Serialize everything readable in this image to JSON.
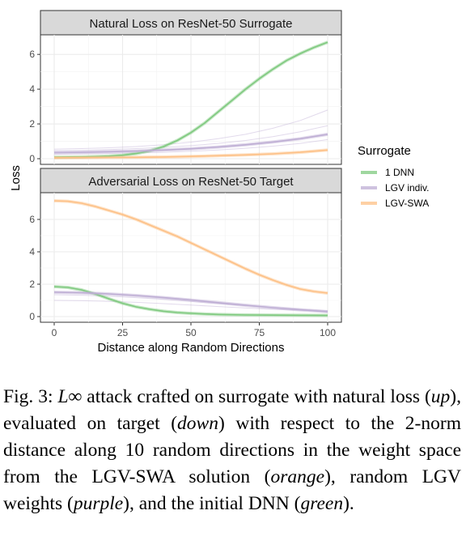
{
  "chart_data": [
    {
      "type": "line",
      "title": "Natural Loss on ResNet-50 Surrogate",
      "ylim": [
        0,
        6.8
      ],
      "yticks": [
        0,
        2,
        4,
        6
      ],
      "xlim": [
        0,
        100
      ],
      "series": [
        {
          "name": "1 DNN",
          "color": "#7fc97f",
          "x": [
            0,
            5,
            10,
            15,
            20,
            25,
            30,
            35,
            40,
            45,
            50,
            55,
            60,
            65,
            70,
            75,
            80,
            85,
            90,
            95,
            100
          ],
          "y": [
            0.08,
            0.09,
            0.1,
            0.12,
            0.15,
            0.2,
            0.3,
            0.45,
            0.7,
            1.05,
            1.5,
            2.05,
            2.7,
            3.35,
            4.0,
            4.6,
            5.15,
            5.65,
            6.05,
            6.4,
            6.7
          ]
        },
        {
          "name": "LGV indiv.",
          "color": "#beaed4",
          "x": [
            0,
            10,
            20,
            30,
            40,
            50,
            60,
            70,
            80,
            90,
            100
          ],
          "y": [
            0.35,
            0.37,
            0.4,
            0.44,
            0.5,
            0.57,
            0.67,
            0.8,
            0.96,
            1.15,
            1.4
          ]
        },
        {
          "name": "LGV-SWA",
          "color": "#fdc086",
          "x": [
            0,
            10,
            20,
            30,
            40,
            50,
            60,
            70,
            80,
            90,
            100
          ],
          "y": [
            0.05,
            0.06,
            0.07,
            0.08,
            0.1,
            0.13,
            0.17,
            0.22,
            0.28,
            0.37,
            0.5
          ]
        }
      ],
      "faint_series": [
        {
          "color": "#beaed4",
          "x": [
            0,
            10,
            20,
            30,
            40,
            50,
            60,
            70,
            80,
            90,
            100
          ],
          "y": [
            0.55,
            0.58,
            0.63,
            0.7,
            0.8,
            0.95,
            1.15,
            1.4,
            1.75,
            2.2,
            2.8
          ]
        },
        {
          "color": "#beaed4",
          "x": [
            0,
            10,
            20,
            30,
            40,
            50,
            60,
            70,
            80,
            90,
            100
          ],
          "y": [
            0.45,
            0.48,
            0.52,
            0.58,
            0.65,
            0.75,
            0.88,
            1.05,
            1.27,
            1.55,
            1.9
          ]
        },
        {
          "color": "#beaed4",
          "x": [
            0,
            10,
            20,
            30,
            40,
            50,
            60,
            70,
            80,
            90,
            100
          ],
          "y": [
            0.25,
            0.27,
            0.3,
            0.33,
            0.37,
            0.43,
            0.5,
            0.6,
            0.72,
            0.88,
            1.1
          ]
        }
      ]
    },
    {
      "type": "line",
      "title": "Adversarial Loss on ResNet-50 Target",
      "ylim": [
        0,
        7.3
      ],
      "yticks": [
        0,
        2,
        4,
        6
      ],
      "xlim": [
        0,
        100
      ],
      "series": [
        {
          "name": "1 DNN",
          "color": "#7fc97f",
          "x": [
            0,
            5,
            10,
            15,
            20,
            25,
            30,
            35,
            40,
            45,
            50,
            55,
            60,
            70,
            80,
            90,
            100
          ],
          "y": [
            1.85,
            1.8,
            1.65,
            1.4,
            1.1,
            0.82,
            0.6,
            0.45,
            0.33,
            0.25,
            0.2,
            0.16,
            0.13,
            0.1,
            0.09,
            0.08,
            0.07
          ]
        },
        {
          "name": "LGV indiv.",
          "color": "#beaed4",
          "x": [
            0,
            10,
            20,
            30,
            40,
            50,
            60,
            70,
            80,
            90,
            100
          ],
          "y": [
            1.5,
            1.47,
            1.4,
            1.3,
            1.17,
            1.02,
            0.86,
            0.7,
            0.55,
            0.42,
            0.3
          ]
        },
        {
          "name": "LGV-SWA",
          "color": "#fdc086",
          "x": [
            0,
            5,
            10,
            15,
            20,
            25,
            30,
            35,
            40,
            45,
            50,
            55,
            60,
            65,
            70,
            75,
            80,
            85,
            90,
            95,
            100
          ],
          "y": [
            7.15,
            7.12,
            7.0,
            6.8,
            6.55,
            6.3,
            6.0,
            5.65,
            5.3,
            4.95,
            4.55,
            4.15,
            3.75,
            3.35,
            2.95,
            2.58,
            2.25,
            1.95,
            1.7,
            1.55,
            1.45
          ]
        }
      ],
      "faint_series": [
        {
          "color": "#beaed4",
          "x": [
            0,
            10,
            20,
            30,
            40,
            50,
            60,
            70,
            80,
            90,
            100
          ],
          "y": [
            1.35,
            1.32,
            1.26,
            1.17,
            1.06,
            0.93,
            0.8,
            0.67,
            0.55,
            0.45,
            0.36
          ]
        },
        {
          "color": "#beaed4",
          "x": [
            0,
            10,
            20,
            30,
            40,
            50,
            60,
            70,
            80,
            90,
            100
          ],
          "y": [
            1.0,
            0.98,
            0.94,
            0.88,
            0.8,
            0.71,
            0.62,
            0.53,
            0.45,
            0.38,
            0.32
          ]
        }
      ]
    }
  ],
  "axes": {
    "xticks": [
      0,
      25,
      50,
      75,
      100
    ],
    "xlabel": "Distance along Random Directions",
    "ylabel": "Loss"
  },
  "legend": {
    "title": "Surrogate",
    "placement": "right",
    "items": [
      {
        "label": "1 DNN",
        "color": "#7fc97f"
      },
      {
        "label": "LGV indiv.",
        "color": "#beaed4"
      },
      {
        "label": "LGV-SWA",
        "color": "#fdc086"
      }
    ]
  },
  "caption": {
    "fig_label": "Fig. 3:",
    "math": "L∞",
    "t1": " attack crafted on surrogate with natural loss (",
    "up": "up",
    "t2": "), evaluated on target (",
    "down": "down",
    "t3": ") with respect to the 2-norm distance along 10 random directions in the weight space from the LGV-SWA solution (",
    "orange": "orange",
    "t4": "), random LGV weights (",
    "purple": "purple",
    "t5": "), and the initial DNN (",
    "green": "green",
    "t6": ")."
  }
}
